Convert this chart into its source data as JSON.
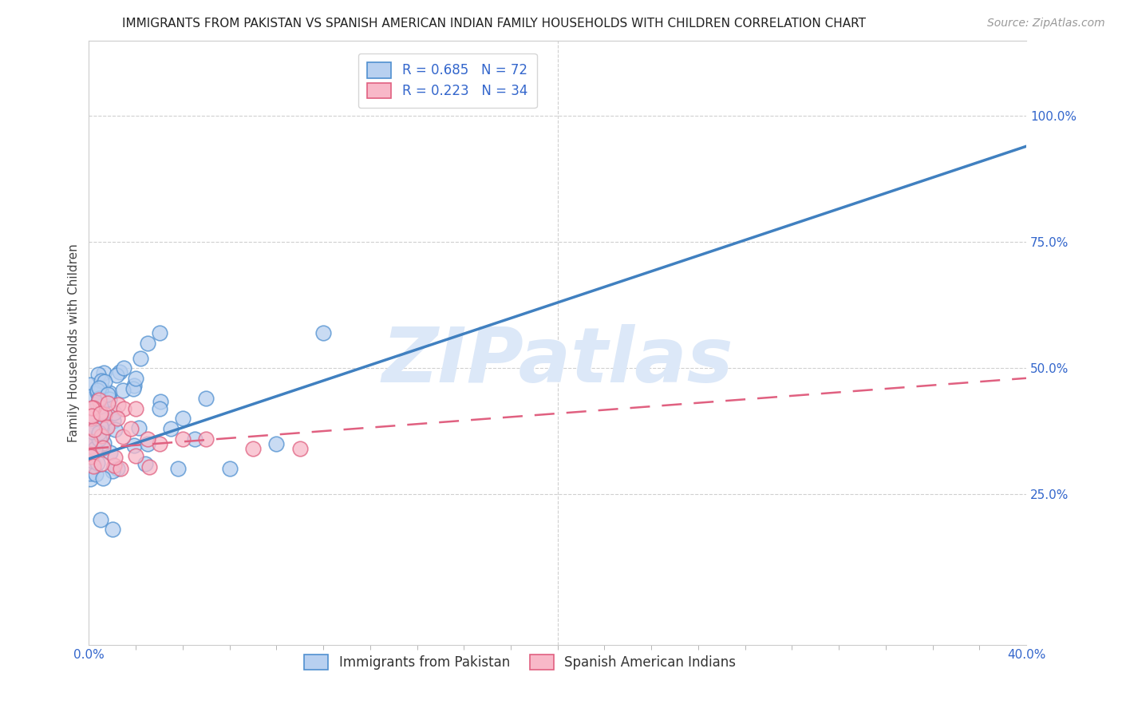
{
  "title": "IMMIGRANTS FROM PAKISTAN VS SPANISH AMERICAN INDIAN FAMILY HOUSEHOLDS WITH CHILDREN CORRELATION CHART",
  "source": "Source: ZipAtlas.com",
  "ylabel_left": "Family Households with Children",
  "x_tick_labels_show": [
    "0.0%",
    "40.0%"
  ],
  "x_tick_vals_show": [
    0.0,
    40.0
  ],
  "x_minor_ticks": [
    2.0,
    4.0,
    6.0,
    8.0,
    10.0,
    12.0,
    14.0,
    16.0,
    18.0,
    20.0,
    22.0,
    24.0,
    26.0,
    28.0,
    30.0,
    32.0,
    34.0,
    36.0,
    38.0
  ],
  "y_tick_labels_right": [
    "100.0%",
    "75.0%",
    "50.0%",
    "25.0%"
  ],
  "y_tick_vals_right": [
    100.0,
    75.0,
    50.0,
    25.0
  ],
  "xlim": [
    0.0,
    40.0
  ],
  "ylim": [
    -5.0,
    115.0
  ],
  "legend_label_blue": "R = 0.685   N = 72",
  "legend_label_pink": "R = 0.223   N = 34",
  "legend_label_blue_short": "Immigrants from Pakistan",
  "legend_label_pink_short": "Spanish American Indians",
  "blue_fill_color": "#b8d0f0",
  "pink_fill_color": "#f8b8c8",
  "blue_edge_color": "#5090d0",
  "pink_edge_color": "#e06080",
  "blue_line_color": "#4080c0",
  "pink_line_color": "#e06080",
  "legend_text_color": "#3366cc",
  "axis_tick_color": "#3366cc",
  "background_color": "#ffffff",
  "watermark_text": "ZIPatlas",
  "watermark_color": "#dce8f8",
  "title_fontsize": 11,
  "axis_label_fontsize": 11,
  "tick_fontsize": 11,
  "legend_fontsize": 12,
  "source_fontsize": 10,
  "blue_reg_intercept": 32.0,
  "blue_reg_slope": 1.55,
  "pink_reg_intercept": 34.0,
  "pink_reg_slope": 0.35
}
